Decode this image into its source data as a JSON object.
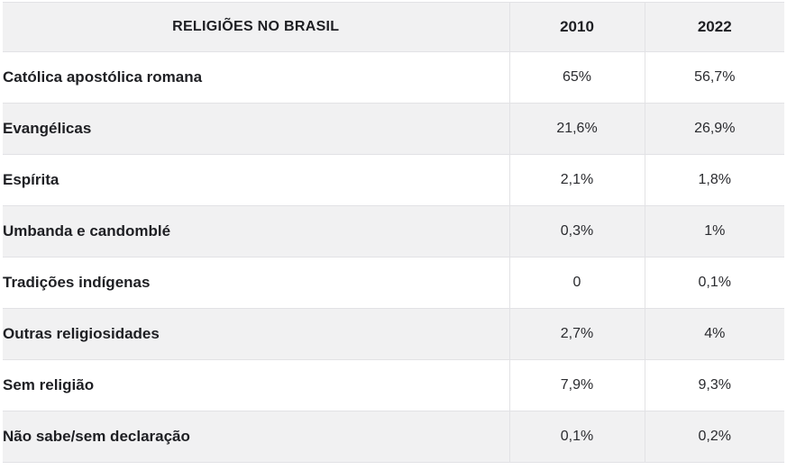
{
  "chart_data": {
    "type": "table",
    "title": "RELIGIÕES NO BRASIL",
    "columns": [
      "RELIGIÕES NO BRASIL",
      "2010",
      "2022"
    ],
    "categories": [
      "Católica apostólica romana",
      "Evangélicas",
      "Espírita",
      "Umbanda e candomblé",
      "Tradições indígenas",
      "Outras religiosidades",
      "Sem religião",
      "Não sabe/sem declaração"
    ],
    "series": [
      {
        "name": "2010",
        "values": [
          65,
          21.6,
          2.1,
          0.3,
          0,
          2.7,
          7.9,
          0.1
        ]
      },
      {
        "name": "2022",
        "values": [
          56.7,
          26.9,
          1.8,
          1,
          0.1,
          4,
          9.3,
          0.2
        ]
      }
    ],
    "value_unit": "%",
    "layout": {
      "stripe_color": "#f1f1f2",
      "border_color": "#e2e2e5",
      "header_background": "#f1f1f2"
    }
  },
  "table": {
    "header": {
      "title": "RELIGIÕES NO BRASIL",
      "year1": "2010",
      "year2": "2022"
    },
    "rows": [
      {
        "label": "Católica apostólica romana",
        "y2010": "65%",
        "y2022": "56,7%"
      },
      {
        "label": "Evangélicas",
        "y2010": "21,6%",
        "y2022": "26,9%"
      },
      {
        "label": "Espírita",
        "y2010": "2,1%",
        "y2022": "1,8%"
      },
      {
        "label": "Umbanda e candomblé",
        "y2010": "0,3%",
        "y2022": "1%"
      },
      {
        "label": "Tradições indígenas",
        "y2010": "0",
        "y2022": "0,1%"
      },
      {
        "label": "Outras religiosidades",
        "y2010": "2,7%",
        "y2022": "4%"
      },
      {
        "label": "Sem religião",
        "y2010": "7,9%",
        "y2022": "9,3%"
      },
      {
        "label": "Não sabe/sem declaração",
        "y2010": "0,1%",
        "y2022": "0,2%"
      }
    ]
  },
  "colors": {
    "stripe": "#f1f1f2",
    "border": "#e2e2e5",
    "label_text": "#1e1f23",
    "value_text": "#2a2b2f",
    "background": "#ffffff"
  }
}
